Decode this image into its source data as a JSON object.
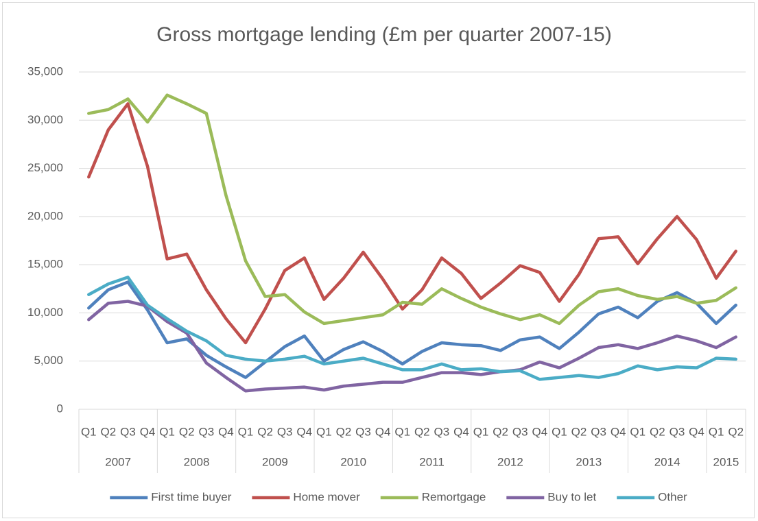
{
  "chart_data": {
    "type": "line",
    "title": "Gross mortgage lending (£m per quarter 2007-15)",
    "categories": [
      "Q1",
      "Q2",
      "Q3",
      "Q4",
      "Q1",
      "Q2",
      "Q3",
      "Q4",
      "Q1",
      "Q2",
      "Q3",
      "Q4",
      "Q1",
      "Q2",
      "Q3",
      "Q4",
      "Q1",
      "Q2",
      "Q3",
      "Q4",
      "Q1",
      "Q2",
      "Q3",
      "Q4",
      "Q1",
      "Q2",
      "Q3",
      "Q4",
      "Q1",
      "Q2",
      "Q3",
      "Q4",
      "Q1",
      "Q2"
    ],
    "category_groups": [
      {
        "label": "2007",
        "span": 4
      },
      {
        "label": "2008",
        "span": 4
      },
      {
        "label": "2009",
        "span": 4
      },
      {
        "label": "2010",
        "span": 4
      },
      {
        "label": "2011",
        "span": 4
      },
      {
        "label": "2012",
        "span": 4
      },
      {
        "label": "2013",
        "span": 4
      },
      {
        "label": "2014",
        "span": 4
      },
      {
        "label": "2015",
        "span": 2
      }
    ],
    "series": [
      {
        "name": "First time buyer",
        "color": "#4f81bd",
        "values": [
          10500,
          12400,
          13200,
          10300,
          6900,
          7300,
          5600,
          4400,
          3300,
          4900,
          6500,
          7600,
          5000,
          6200,
          7000,
          6000,
          4700,
          6000,
          6900,
          6700,
          6600,
          6100,
          7200,
          7500,
          6300,
          8000,
          9900,
          10600,
          9500,
          11200,
          12100,
          11000,
          8900,
          10800
        ]
      },
      {
        "name": "Home mover",
        "color": "#c0504d",
        "values": [
          24100,
          29000,
          31700,
          25200,
          15600,
          16100,
          12400,
          9400,
          6900,
          10400,
          14400,
          15700,
          11400,
          13600,
          16300,
          13500,
          10400,
          12400,
          15700,
          14100,
          11500,
          13100,
          14900,
          14200,
          11200,
          14000,
          17700,
          17900,
          15100,
          17700,
          20000,
          17600,
          13600,
          16400
        ]
      },
      {
        "name": "Remortgage",
        "color": "#9bbb59",
        "values": [
          30700,
          31100,
          32200,
          29800,
          32600,
          31700,
          30700,
          22200,
          15400,
          11700,
          11900,
          10100,
          8900,
          9200,
          9500,
          9800,
          11100,
          10900,
          12500,
          11500,
          10600,
          9900,
          9300,
          9800,
          8900,
          10800,
          12200,
          12500,
          11800,
          11400,
          11700,
          11000,
          11300,
          12600
        ]
      },
      {
        "name": "Buy to let",
        "color": "#8064a2",
        "values": [
          9300,
          11000,
          11200,
          10700,
          9100,
          7900,
          4800,
          3300,
          1900,
          2100,
          2200,
          2300,
          2000,
          2400,
          2600,
          2800,
          2800,
          3300,
          3800,
          3800,
          3600,
          3900,
          4100,
          4900,
          4300,
          5300,
          6400,
          6700,
          6300,
          6900,
          7600,
          7100,
          6400,
          7500
        ]
      },
      {
        "name": "Other",
        "color": "#4bacc6",
        "values": [
          11900,
          13000,
          13700,
          10800,
          9400,
          8100,
          7100,
          5600,
          5200,
          5000,
          5200,
          5500,
          4700,
          5000,
          5300,
          4700,
          4100,
          4100,
          4700,
          4100,
          4200,
          3900,
          4000,
          3100,
          3300,
          3500,
          3300,
          3700,
          4500,
          4100,
          4400,
          4300,
          5300,
          5200
        ]
      }
    ],
    "ylim": [
      0,
      35000
    ],
    "yticks": [
      0,
      {
        "value": 5000,
        "label": "5,000"
      },
      {
        "value": 10000,
        "label": "10,000"
      },
      {
        "value": 15000,
        "label": "15,000"
      },
      {
        "value": 20000,
        "label": "20,000"
      },
      {
        "value": 25000,
        "label": "25,000"
      },
      {
        "value": 30000,
        "label": "30,000"
      },
      {
        "value": 35000,
        "label": "35,000"
      }
    ],
    "grid": true,
    "legend": "bottom"
  }
}
